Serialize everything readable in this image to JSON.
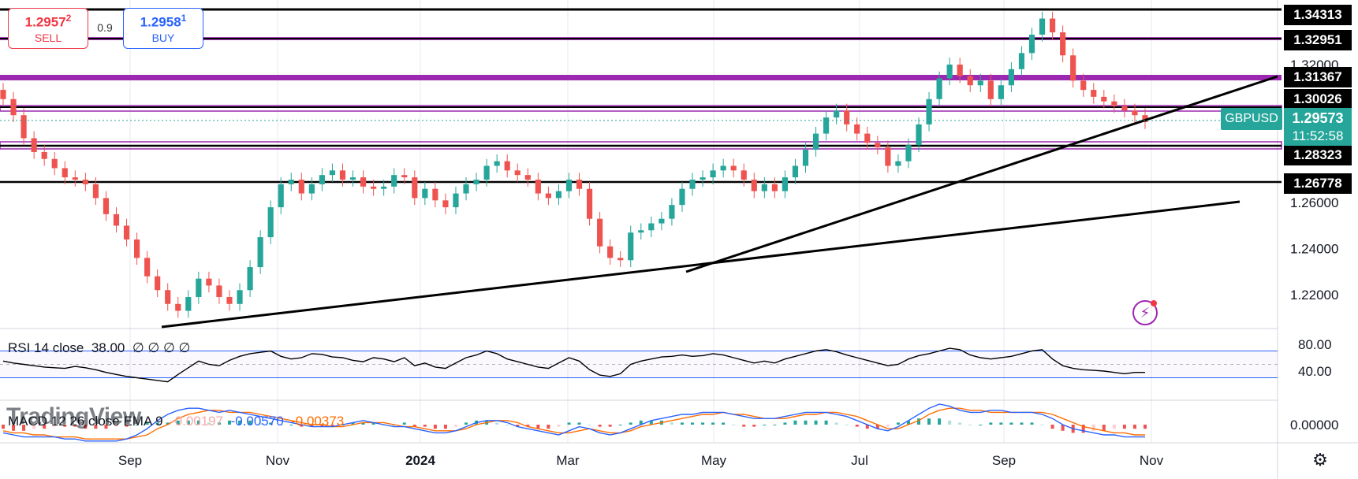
{
  "trade": {
    "sell_price": "1.2957",
    "sell_price_sup": "2",
    "sell_label": "SELL",
    "spread": "0.9",
    "buy_price": "1.2958",
    "buy_price_sup": "1",
    "buy_label": "BUY"
  },
  "symbol": "GBPUSD",
  "current_price": "1.29573",
  "countdown": "11:52:58",
  "watermark": "TradingView",
  "colors": {
    "up": "#26a69a",
    "down": "#ef5350",
    "rsi_line": "#000000",
    "rsi_band": "#2962ff",
    "macd_line": "#2962ff",
    "signal_line": "#ff6d00",
    "level_purple": "#9c27b0"
  },
  "icons": {
    "alert": "lightning-bolt-icon",
    "settings": "gear-icon"
  },
  "chart_data": [
    {
      "type": "candlestick",
      "name": "price",
      "x_tick_labels": [
        "Sep",
        "Nov",
        "2024",
        "Mar",
        "May",
        "Jul",
        "Sep",
        "Nov"
      ],
      "y_tick_labels": [
        "1.22000",
        "1.24000",
        "1.26000",
        "1.32000"
      ],
      "y_range": [
        1.206,
        1.346
      ],
      "overview_closes": [
        1.305,
        1.298,
        1.288,
        1.282,
        1.279,
        1.275,
        1.271,
        1.27,
        1.268,
        1.262,
        1.255,
        1.25,
        1.244,
        1.236,
        1.228,
        1.222,
        1.216,
        1.213,
        1.219,
        1.227,
        1.224,
        1.219,
        1.216,
        1.222,
        1.232,
        1.245,
        1.258,
        1.268,
        1.27,
        1.264,
        1.268,
        1.272,
        1.274,
        1.27,
        1.271,
        1.267,
        1.266,
        1.267,
        1.272,
        1.271,
        1.262,
        1.266,
        1.261,
        1.258,
        1.264,
        1.268,
        1.27,
        1.276,
        1.278,
        1.274,
        1.272,
        1.27,
        1.264,
        1.262,
        1.265,
        1.27,
        1.266,
        1.253,
        1.241,
        1.236,
        1.235,
        1.247,
        1.248,
        1.251,
        1.253,
        1.259,
        1.266,
        1.27,
        1.271,
        1.274,
        1.276,
        1.274,
        1.27,
        1.265,
        1.268,
        1.265,
        1.271,
        1.276,
        1.283,
        1.29,
        1.297,
        1.3,
        1.294,
        1.29,
        1.286,
        1.284,
        1.276,
        1.278,
        1.285,
        1.294,
        1.305,
        1.314,
        1.32,
        1.315,
        1.311,
        1.313,
        1.305,
        1.311,
        1.318,
        1.325,
        1.333,
        1.34,
        1.334,
        1.324,
        1.313,
        1.309,
        1.306,
        1.304,
        1.302,
        1.3,
        1.298,
        1.295
      ],
      "levels": [
        {
          "price": 1.34313,
          "label": "1.34313"
        },
        {
          "price": 1.32951,
          "label": "1.32951"
        },
        {
          "price": 1.31367,
          "label": "1.31367"
        },
        {
          "price": 1.30026,
          "label": "1.30026"
        },
        {
          "price": 1.28323,
          "label": "1.28323"
        },
        {
          "price": 1.26778,
          "label": "1.26778"
        }
      ],
      "trendlines": [
        {
          "from": [
            "Oct-2023",
            1.213
          ],
          "to": [
            "Nov-2024",
            1.26
          ]
        },
        {
          "from": [
            "Apr-2024",
            1.23
          ],
          "to": [
            "Oct-2024",
            1.314
          ]
        }
      ]
    },
    {
      "type": "line",
      "name": "rsi",
      "label": "RSI 14 close",
      "value": "38.00",
      "na_values": [
        "∅",
        "∅",
        "∅",
        "∅"
      ],
      "y_tick_labels": [
        "80.00",
        "40.00"
      ],
      "bands": [
        70,
        30
      ],
      "values": [
        55,
        52,
        50,
        48,
        46,
        45,
        44,
        47,
        45,
        42,
        38,
        35,
        32,
        30,
        28,
        26,
        24,
        35,
        45,
        55,
        50,
        48,
        56,
        62,
        66,
        68,
        70,
        62,
        58,
        60,
        66,
        65,
        61,
        60,
        56,
        54,
        60,
        58,
        54,
        60,
        48,
        52,
        46,
        44,
        52,
        60,
        64,
        70,
        66,
        58,
        54,
        50,
        46,
        44,
        52,
        60,
        55,
        42,
        34,
        32,
        36,
        50,
        55,
        58,
        61,
        62,
        64,
        62,
        63,
        66,
        64,
        60,
        56,
        52,
        55,
        52,
        58,
        62,
        66,
        70,
        72,
        69,
        64,
        60,
        56,
        52,
        48,
        50,
        58,
        63,
        66,
        70,
        74,
        72,
        64,
        60,
        58,
        60,
        62,
        66,
        70,
        72,
        58,
        48,
        44,
        42,
        41,
        40,
        38,
        36,
        38,
        38
      ]
    },
    {
      "type": "histogram",
      "name": "macd",
      "label": "MACD 12 26 close EMA 9",
      "values_text": [
        "-0.00197",
        "-0.00570",
        "-0.00373"
      ],
      "y_tick_labels": [
        "0.00000"
      ],
      "histogram": [
        -2,
        -3,
        -3,
        -2,
        -2,
        -1,
        -1,
        -1,
        -2,
        -2,
        -2,
        -1,
        -1,
        0,
        1,
        1,
        1,
        2,
        2,
        2,
        1,
        1,
        2,
        2,
        2,
        1,
        1,
        0,
        0,
        -1,
        -1,
        -1,
        -1,
        0,
        1,
        1,
        1,
        0,
        0,
        1,
        -1,
        -1,
        -2,
        -2,
        -1,
        1,
        2,
        2,
        1,
        0,
        -1,
        -1,
        -2,
        -2,
        -1,
        1,
        1,
        0,
        -1,
        -1,
        0,
        1,
        2,
        2,
        2,
        1,
        1,
        1,
        1,
        1,
        1,
        0,
        -1,
        -1,
        0,
        0,
        1,
        2,
        2,
        2,
        2,
        1,
        0,
        -1,
        -2,
        -2,
        -1,
        1,
        2,
        3,
        3,
        3,
        2,
        1,
        0,
        0,
        1,
        1,
        1,
        1,
        1,
        0,
        -2,
        -3,
        -4,
        -4,
        -3,
        -3,
        -2,
        -2,
        -2,
        -2
      ],
      "macd": [
        -4,
        -5,
        -6,
        -6,
        -6,
        -6,
        -7,
        -7,
        -8,
        -8,
        -8,
        -8,
        -7,
        -5,
        -2,
        2,
        5,
        7,
        8,
        8,
        7,
        6,
        7,
        6,
        5,
        4,
        3,
        2,
        1,
        0,
        -1,
        -1,
        -1,
        0,
        1,
        2,
        1,
        0,
        -1,
        -1,
        -2,
        -3,
        -4,
        -4,
        -3,
        -1,
        1,
        2,
        2,
        1,
        -1,
        -2,
        -3,
        -4,
        -5,
        -3,
        -1,
        -2,
        -4,
        -5,
        -4,
        -2,
        0,
        2,
        3,
        4,
        5,
        5,
        6,
        6,
        6,
        5,
        4,
        3,
        3,
        3,
        4,
        5,
        6,
        6,
        6,
        5,
        4,
        2,
        0,
        -2,
        -3,
        -1,
        2,
        5,
        8,
        10,
        9,
        7,
        6,
        6,
        7,
        7,
        6,
        6,
        6,
        5,
        3,
        0,
        -2,
        -3,
        -4,
        -5,
        -5,
        -6,
        -6,
        -6
      ],
      "signal": [
        -3,
        -4,
        -4,
        -5,
        -5,
        -6,
        -6,
        -6,
        -7,
        -7,
        -7,
        -7,
        -7,
        -6,
        -5,
        -2,
        0,
        3,
        5,
        6,
        7,
        7,
        6,
        6,
        6,
        5,
        4,
        3,
        2,
        1,
        0,
        0,
        -1,
        -1,
        0,
        1,
        1,
        1,
        0,
        -1,
        -1,
        -2,
        -3,
        -3,
        -3,
        -2,
        0,
        1,
        2,
        2,
        1,
        -1,
        -2,
        -3,
        -4,
        -4,
        -3,
        -2,
        -3,
        -4,
        -4,
        -3,
        -1,
        0,
        1,
        2,
        3,
        4,
        5,
        5,
        6,
        5,
        5,
        4,
        3,
        3,
        3,
        4,
        5,
        5,
        6,
        6,
        5,
        4,
        2,
        0,
        -2,
        -2,
        0,
        2,
        5,
        7,
        8,
        8,
        7,
        7,
        6,
        6,
        6,
        6,
        6,
        6,
        5,
        3,
        1,
        -1,
        -2,
        -3,
        -4,
        -4,
        -5,
        -5
      ]
    }
  ]
}
